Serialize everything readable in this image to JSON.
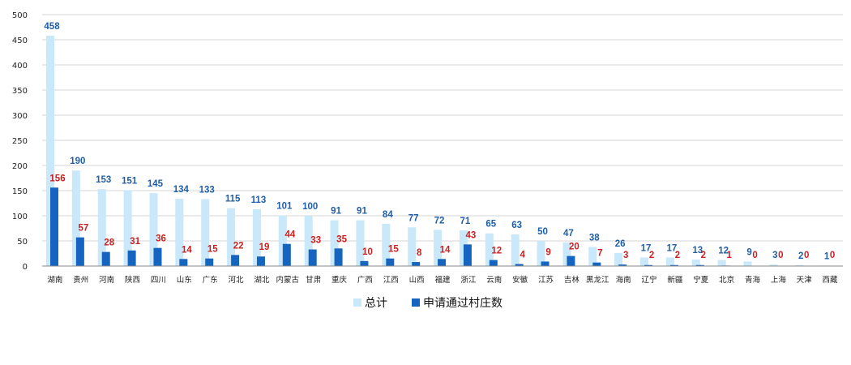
{
  "chart_data": {
    "type": "bar",
    "title": "",
    "xlabel": "",
    "ylabel": "",
    "ylim": [
      0,
      500
    ],
    "yticks": [
      0,
      50,
      100,
      150,
      200,
      250,
      300,
      350,
      400,
      450,
      500
    ],
    "grid": true,
    "legend_position": "bottom",
    "categories": [
      "湖南",
      "贵州",
      "河南",
      "陕西",
      "四川",
      "山东",
      "广东",
      "河北",
      "湖北",
      "内蒙古",
      "甘肃",
      "重庆",
      "广西",
      "江西",
      "山西",
      "福建",
      "浙江",
      "云南",
      "安徽",
      "江苏",
      "吉林",
      "黑龙江",
      "海南",
      "辽宁",
      "新疆",
      "宁夏",
      "北京",
      "青海",
      "上海",
      "天津",
      "西藏"
    ],
    "series": [
      {
        "name": "总计",
        "color": "#c9e8fa",
        "label_color": "#1f5fa8",
        "values": [
          458,
          190,
          153,
          151,
          145,
          134,
          133,
          115,
          113,
          101,
          100,
          91,
          91,
          84,
          77,
          72,
          71,
          65,
          63,
          50,
          47,
          38,
          26,
          17,
          17,
          13,
          12,
          9,
          3,
          2,
          1
        ]
      },
      {
        "name": "申请通过村庄数",
        "color": "#1565c0",
        "label_color": "#cc1f1f",
        "values": [
          156,
          57,
          28,
          31,
          36,
          14,
          15,
          22,
          19,
          44,
          33,
          35,
          10,
          15,
          8,
          14,
          43,
          12,
          4,
          9,
          20,
          7,
          3,
          2,
          2,
          2,
          1,
          0,
          0,
          0,
          0
        ]
      }
    ]
  }
}
